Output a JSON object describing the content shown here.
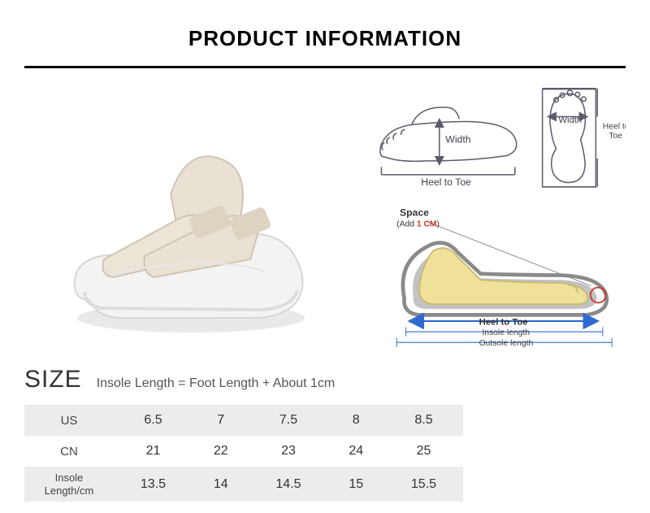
{
  "header": {
    "title": "PRODUCT INFORMATION"
  },
  "diagrams": {
    "foot_top": {
      "width_label": "Width",
      "heel_to_toe_label": "Heel to Toe"
    },
    "footprint": {
      "width_label": "Width",
      "heel_to_toe_label": "Heel to\nToe"
    },
    "shoe_side": {
      "space_label": "Space",
      "space_add": "(Add ",
      "space_add_value": "1 CM",
      "space_add_close": ")",
      "heel_to_toe": "Heel to Toe",
      "insole": "Insole length",
      "outsole": "Outsole length"
    }
  },
  "size": {
    "label": "SIZE",
    "formula": "Insole Length = Foot Length + About 1cm",
    "table": {
      "rows": [
        {
          "label": "US",
          "grey": true,
          "values": [
            "6.5",
            "7",
            "7.5",
            "8",
            "8.5"
          ]
        },
        {
          "label": "CN",
          "grey": false,
          "values": [
            "21",
            "22",
            "23",
            "24",
            "25"
          ]
        },
        {
          "label": "Insole Length/cm",
          "grey": true,
          "small": true,
          "values": [
            "13.5",
            "14",
            "14.5",
            "15",
            "15.5"
          ]
        }
      ]
    }
  },
  "colors": {
    "text": "#333333",
    "muted": "#606060",
    "rule": "#000000",
    "grey_row": "#ececec",
    "diagram_line": "#5b5b6b",
    "shoe_fill": "#efe19a",
    "shoe_outline": "#8a8a8a",
    "arrow_blue": "#2e6ad1",
    "accent_red": "#c63a2e",
    "sandal_canvas": "#e9e1d4",
    "sandal_sole": "#f3f3f3"
  }
}
